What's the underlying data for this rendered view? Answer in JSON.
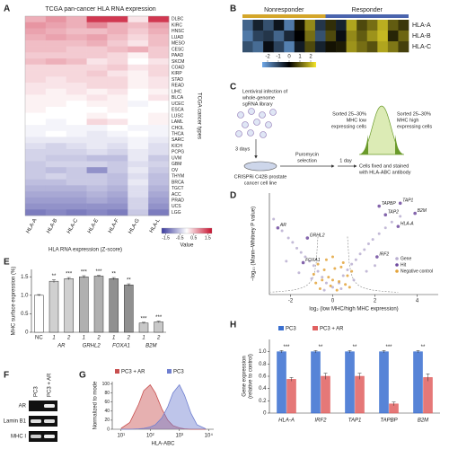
{
  "panels": {
    "A": {
      "label": "A",
      "title": "TCGA pan-cancer HLA RNA expression",
      "columns": [
        "HLA-A",
        "HLA-B",
        "HLA-C",
        "HLA-E",
        "HLA-F",
        "HLA-G",
        "HLA-L"
      ],
      "rows": [
        "DLBC",
        "KIRC",
        "HNSC",
        "LUAD",
        "MESO",
        "CESC",
        "PAAD",
        "SKCM",
        "COAD",
        "KIRP",
        "STAD",
        "READ",
        "LIHC",
        "BLCA",
        "UCEC",
        "ESCA",
        "LUSC",
        "LAML",
        "CHOL",
        "THCA",
        "SARC",
        "KICH",
        "PCPG",
        "UVM",
        "GBM",
        "OV",
        "THYM",
        "BRCA",
        "TGCT",
        "ACC",
        "PRAD",
        "UCS",
        "LGG"
      ],
      "values": [
        [
          0.6,
          0.8,
          0.6,
          1.5,
          1.5,
          0.2,
          1.5
        ],
        [
          0.8,
          0.7,
          0.6,
          0.9,
          0.6,
          0.5,
          0.7
        ],
        [
          0.7,
          0.6,
          0.5,
          0.5,
          0.6,
          0.4,
          0.6
        ],
        [
          0.6,
          0.7,
          0.6,
          0.7,
          0.5,
          0.3,
          0.5
        ],
        [
          0.5,
          0.5,
          0.5,
          0.6,
          0.4,
          0.2,
          0.5
        ],
        [
          0.5,
          0.5,
          0.4,
          0.4,
          0.5,
          0.6,
          0.4
        ],
        [
          0.4,
          0.4,
          0.4,
          0.4,
          0.3,
          0.1,
          0.4
        ],
        [
          0.5,
          0.6,
          0.5,
          0.2,
          0.3,
          0.0,
          0.2
        ],
        [
          0.3,
          0.3,
          0.3,
          0.3,
          0.4,
          0.2,
          0.3
        ],
        [
          0.3,
          0.3,
          0.3,
          0.4,
          0.2,
          0.1,
          0.3
        ],
        [
          0.3,
          0.2,
          0.3,
          0.3,
          0.3,
          0.1,
          0.2
        ],
        [
          0.2,
          0.2,
          0.2,
          0.3,
          0.3,
          0.1,
          0.2
        ],
        [
          0.2,
          0.1,
          0.2,
          0.1,
          0.2,
          0.0,
          0.1
        ],
        [
          0.1,
          0.1,
          0.1,
          0.2,
          0.1,
          0.0,
          0.2
        ],
        [
          0.1,
          0.1,
          0.0,
          0.1,
          0.1,
          -0.1,
          0.0
        ],
        [
          0.1,
          0.0,
          0.0,
          0.0,
          0.1,
          0.0,
          0.0
        ],
        [
          0.0,
          0.0,
          0.0,
          0.1,
          0.0,
          0.0,
          0.1
        ],
        [
          0.0,
          -0.1,
          0.0,
          0.3,
          0.2,
          0.0,
          0.1
        ],
        [
          -0.1,
          -0.1,
          -0.1,
          -0.1,
          0.0,
          -0.1,
          -0.1
        ],
        [
          -0.1,
          0.0,
          -0.1,
          -0.2,
          -0.1,
          0.0,
          -0.1
        ],
        [
          -0.2,
          -0.2,
          -0.2,
          -0.2,
          -0.2,
          -0.1,
          -0.2
        ],
        [
          -0.3,
          -0.4,
          -0.3,
          -0.2,
          -0.3,
          -0.1,
          -0.3
        ],
        [
          -0.4,
          -0.4,
          -0.4,
          -0.3,
          -0.4,
          -0.2,
          -0.3
        ],
        [
          -0.4,
          -0.5,
          -0.5,
          -0.6,
          -0.6,
          -0.2,
          -0.5
        ],
        [
          -0.5,
          -0.4,
          -0.4,
          -0.4,
          -0.5,
          -0.3,
          -0.4
        ],
        [
          -0.5,
          -0.6,
          -0.5,
          -1.0,
          -0.5,
          -0.2,
          -0.5
        ],
        [
          -0.5,
          -0.4,
          -0.5,
          -0.5,
          -0.6,
          -0.3,
          -0.6
        ],
        [
          -0.6,
          -0.6,
          -0.5,
          -0.5,
          -0.6,
          -0.2,
          -0.6
        ],
        [
          -0.7,
          -0.7,
          -0.7,
          -0.6,
          -0.7,
          -0.3,
          -0.7
        ],
        [
          -0.8,
          -0.8,
          -0.8,
          -0.7,
          -0.8,
          -0.3,
          -0.8
        ],
        [
          -0.9,
          -0.9,
          -0.9,
          -0.8,
          -0.9,
          -0.4,
          -0.9
        ],
        [
          -1.0,
          -1.0,
          -1.0,
          -1.0,
          -1.0,
          -0.4,
          -1.0
        ],
        [
          -1.2,
          -1.1,
          -1.2,
          -1.1,
          -1.2,
          -0.5,
          -1.2
        ]
      ],
      "xlabel": "HLA RNA expression (Z-score)",
      "ylabel": "TCGA cancer types",
      "colorbar": {
        "lim": [
          -1.8,
          1.8
        ],
        "ticks": [
          -1.5,
          -0.5,
          0.5,
          1.5
        ],
        "label": "Value",
        "colormap": [
          "#3b3b9e",
          "#ffffff",
          "#c8102e"
        ]
      }
    },
    "B": {
      "label": "B",
      "groups": [
        {
          "name": "Nonresponder",
          "color": "#d4a62a"
        },
        {
          "name": "Responder",
          "color": "#4a64ad"
        }
      ],
      "rows": [
        "HLA-A",
        "HLA-B",
        "HLA-C"
      ],
      "values": [
        [
          -1.5,
          -0.5,
          -1.2,
          -0.3,
          -1.8,
          0.2,
          1.5,
          -0.8,
          0.5,
          -0.5,
          1.8,
          0.8,
          1.2,
          1.9,
          1.0,
          0.6
        ],
        [
          -1.8,
          -1.0,
          -0.8,
          -1.5,
          -0.6,
          0.0,
          1.2,
          -1.2,
          0.8,
          -0.2,
          1.5,
          1.0,
          1.6,
          2.0,
          0.4,
          1.1
        ],
        [
          -1.2,
          -1.6,
          -0.2,
          -1.0,
          -1.9,
          -0.4,
          0.8,
          -0.5,
          0.2,
          0.3,
          1.6,
          1.2,
          0.9,
          1.8,
          1.3,
          0.7
        ]
      ],
      "colorbar": {
        "lim": [
          -2.5,
          2.5
        ],
        "ticks": [
          -2,
          -1,
          0,
          1,
          2
        ],
        "colormap": [
          "#6fa8e8",
          "#000000",
          "#f5e52a"
        ]
      }
    },
    "C": {
      "label": "C",
      "infection": [
        "Lentiviral infection of",
        "whole-genome",
        "sgRNA library"
      ],
      "days1": "3 days",
      "cells": [
        "CRISPRi C42B prostate",
        "cancer cell line"
      ],
      "puro": [
        "Puromycin",
        "selection"
      ],
      "days2": "1 day",
      "stain": [
        "Cells fixed and stained",
        "with HLA-ABC antibody"
      ],
      "low": [
        "Sorted 25–30%",
        "MHC low",
        "expressing cells"
      ],
      "high": [
        "Sorted 25–30%",
        "MHC high",
        "expressing cells"
      ]
    },
    "D": {
      "label": "D",
      "type": "scatter",
      "xlabel": "log₂ (low MHC/high MHC expression)",
      "ylabel": "−log₁₀ (Mann–Whitney P value)",
      "xlim": [
        -3,
        5
      ],
      "ylim": [
        0,
        7
      ],
      "xticks": [
        -2,
        0,
        2,
        4
      ],
      "series": [
        {
          "name": "Gene",
          "color": "#b9aed0",
          "x": [
            -2.8,
            -2.4,
            -2.1,
            -1.9,
            -1.7,
            -1.5,
            -1.3,
            -1.1,
            -0.9,
            -0.7,
            -0.5,
            -0.3,
            0.3,
            0.5,
            0.7,
            0.9,
            1.1,
            1.3,
            1.5,
            1.7,
            1.9,
            2.2,
            2.5,
            2.8,
            3.2,
            -1.6,
            -1.0,
            1.0,
            1.6,
            -2.2,
            2.0,
            0.0,
            -0.4,
            0.4
          ],
          "y": [
            5.2,
            4.4,
            3.9,
            3.6,
            3.2,
            2.9,
            2.6,
            2.3,
            2.0,
            1.6,
            1.2,
            0.8,
            0.8,
            1.3,
            1.7,
            2.1,
            2.4,
            2.8,
            3.1,
            3.5,
            3.8,
            4.2,
            4.6,
            5.0,
            5.4,
            1.5,
            1.1,
            1.0,
            1.6,
            2.3,
            2.0,
            0.5,
            0.3,
            0.4
          ]
        },
        {
          "name": "Hit",
          "color": "#6e4a9e",
          "x": [
            -2.6,
            -1.2,
            -1.4,
            2.2,
            3.2,
            2.5,
            3.9,
            3.1,
            2.1
          ],
          "y": [
            4.6,
            3.9,
            2.2,
            6.1,
            6.3,
            5.5,
            5.6,
            4.7,
            2.6
          ],
          "labels": [
            "AR",
            "GRHL2",
            "FOXA1",
            "TAPBP",
            "TAP1",
            "TAP2",
            "B2M",
            "HLA-A",
            "IRF2"
          ]
        },
        {
          "name": "Negative control",
          "color": "#e3a33a",
          "x": [
            -0.9,
            -0.7,
            -0.5,
            -0.3,
            -0.1,
            0.1,
            0.3,
            0.5,
            0.7,
            0.9,
            -0.6,
            -0.2,
            0.2,
            0.6,
            -0.4,
            0.0,
            0.4,
            -0.8,
            0.8,
            0.0
          ],
          "y": [
            1.4,
            2.1,
            1.0,
            2.4,
            0.6,
            1.8,
            0.9,
            2.2,
            1.3,
            1.6,
            0.4,
            1.2,
            0.3,
            0.7,
            1.7,
            2.6,
            1.9,
            0.8,
            0.5,
            1.0
          ]
        }
      ]
    },
    "E": {
      "label": "E",
      "type": "bar",
      "ylabel": "MHC surface expression (%)",
      "categories": [
        "NC",
        "1",
        "2",
        "1",
        "2",
        "1",
        "2",
        "1",
        "2"
      ],
      "groups": [
        "AR",
        "GRHL2",
        "FOXA1",
        "B2M"
      ],
      "values": [
        1.0,
        1.38,
        1.45,
        1.5,
        1.52,
        1.45,
        1.28,
        0.25,
        0.28
      ],
      "errors": [
        0.02,
        0.04,
        0.03,
        0.03,
        0.02,
        0.03,
        0.03,
        0.02,
        0.02
      ],
      "significance": [
        null,
        "**",
        "***",
        "***",
        "***",
        "**",
        "**",
        "***",
        "***"
      ],
      "colors": [
        "#ffffff",
        "#d0d0d0",
        "#d0d0d0",
        "#b0b0b0",
        "#b0b0b0",
        "#909090",
        "#909090",
        "#c8c8c8",
        "#c8c8c8"
      ],
      "ylim": [
        0,
        1.7
      ],
      "yticks": [
        0,
        0.5,
        {
          "value": 1,
          "label": "1.0"
        },
        1.5
      ]
    },
    "F": {
      "label": "F",
      "columns": [
        {
          "name": "PC3",
          "color": "#3a5fb0"
        },
        {
          "name": "PC3 + AR",
          "color": "#c0392b"
        }
      ],
      "rows": [
        "AR",
        "Lamin B1",
        "MHC I"
      ]
    },
    "G": {
      "label": "G",
      "type": "area",
      "ylabel": "Normalized to mode",
      "xlabel": "HLA-ABC",
      "log_x": true,
      "xlim": [
        5,
        15000
      ],
      "ylim": [
        0,
        105
      ],
      "xticks": [
        {
          "value": 10,
          "label": "10¹"
        },
        {
          "value": 100,
          "label": "10²"
        },
        {
          "value": 1000,
          "label": "10³"
        },
        {
          "value": 10000,
          "label": "10⁴"
        }
      ],
      "yticks": [
        0,
        20,
        40,
        60,
        80,
        100
      ],
      "x": [
        10,
        20,
        40,
        60,
        100,
        150,
        250,
        400,
        600,
        1000,
        1500,
        2500,
        4000,
        8000
      ],
      "series": [
        {
          "name": "PC3 + AR",
          "color": "#c85050",
          "values": [
            2,
            15,
            55,
            85,
            98,
            80,
            45,
            20,
            8,
            3,
            1,
            0,
            0,
            0
          ]
        },
        {
          "name": "PC3",
          "color": "#6f7fd0",
          "values": [
            0,
            0,
            1,
            2,
            5,
            10,
            25,
            50,
            80,
            98,
            75,
            35,
            10,
            1
          ]
        }
      ]
    },
    "H": {
      "label": "H",
      "type": "bar",
      "ylabel": [
        "Gene expression",
        "(relative to control)"
      ],
      "categories": [
        "HLA-A",
        "IRF2",
        "TAP1",
        "TAPBP",
        "B2M"
      ],
      "series": [
        {
          "name": "PC3",
          "color": "#3a6fd0",
          "values": [
            1,
            1,
            1,
            1,
            1
          ],
          "errors": [
            0.02,
            0.02,
            0.02,
            0.02,
            0.02
          ]
        },
        {
          "name": "PC3 + AR",
          "color": "#e06060",
          "values": [
            0.55,
            0.6,
            0.6,
            0.15,
            0.58
          ],
          "errors": [
            0.03,
            0.05,
            0.05,
            0.03,
            0.06
          ]
        }
      ],
      "significance": [
        "***",
        "**",
        "**",
        "***",
        "**"
      ],
      "ylim": [
        0,
        1.2
      ],
      "yticks": [
        0,
        0.2,
        0.4,
        0.6,
        0.8,
        {
          "value": 1,
          "label": "1.0"
        }
      ]
    }
  }
}
